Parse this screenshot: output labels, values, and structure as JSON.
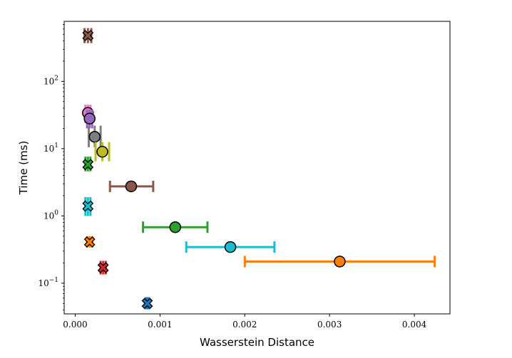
{
  "chart_data": {
    "type": "scatter",
    "xlabel": "Wasserstein Distance",
    "ylabel": "Time (ms)",
    "x_scale": "linear",
    "y_scale": "log",
    "xlim": [
      -0.00013,
      0.00442
    ],
    "ylim": [
      0.035,
      780
    ],
    "x_ticks": [
      0,
      0.001,
      0.002,
      0.003,
      0.004
    ],
    "x_tick_labels": [
      "0.000",
      "0.001",
      "0.002",
      "0.003",
      "0.004"
    ],
    "y_ticks": [
      0.1,
      1,
      10,
      100
    ],
    "y_tick_labels": [
      "10",
      "10",
      "10",
      "10"
    ],
    "y_tick_exponents": [
      "−1",
      "0",
      "1",
      "2"
    ],
    "grid": false,
    "series": [
      {
        "name": "blue-x",
        "marker": "x",
        "color": "#1f77b4",
        "x": 0.00085,
        "y": 0.05,
        "xerr": [
          0.00083,
          0.00087
        ],
        "yerr": [
          0.041,
          0.062
        ]
      },
      {
        "name": "red-x",
        "marker": "x",
        "color": "#d62728",
        "x": 0.00033,
        "y": 0.17,
        "xerr": [
          0.0003,
          0.00036
        ],
        "yerr": [
          0.135,
          0.215
        ]
      },
      {
        "name": "orange-x",
        "marker": "x",
        "color": "#ff7f0e",
        "x": 0.00017,
        "y": 0.41,
        "xerr": [
          0.00014,
          0.0002
        ],
        "yerr": [
          0.34,
          0.5
        ]
      },
      {
        "name": "cyan-x",
        "marker": "x",
        "color": "#17becf",
        "x": 0.00015,
        "y": 1.4,
        "xerr": [
          0.00012,
          0.00018
        ],
        "yerr": [
          1.0,
          1.9
        ]
      },
      {
        "name": "green-x",
        "marker": "x",
        "color": "#2ca02c",
        "x": 0.00015,
        "y": 5.8,
        "xerr": [
          0.00012,
          0.00018
        ],
        "yerr": [
          4.6,
          7.6
        ]
      },
      {
        "name": "brown-x",
        "marker": "x",
        "color": "#8c564b",
        "x": 0.00015,
        "y": 480,
        "xerr": [
          0.00011,
          0.00019
        ],
        "yerr": [
          370,
          620
        ]
      },
      {
        "name": "pink-circle",
        "marker": "o",
        "color": "#e377c2",
        "x": 0.00015,
        "y": 34,
        "xerr": [
          0.00012,
          0.00018
        ],
        "yerr": [
          24,
          45
        ]
      },
      {
        "name": "purple-circle",
        "marker": "o",
        "color": "#9467bd",
        "x": 0.00017,
        "y": 28,
        "xerr": [
          0.00014,
          0.0002
        ],
        "yerr": [
          20,
          38
        ]
      },
      {
        "name": "gray-circle",
        "marker": "o",
        "color": "#7f7f7f",
        "x": 0.00023,
        "y": 15,
        "xerr": [
          0.00016,
          0.0003
        ],
        "yerr": [
          10.5,
          22
        ]
      },
      {
        "name": "olive-circle",
        "marker": "o",
        "color": "#bcbd22",
        "x": 0.00032,
        "y": 9,
        "xerr": [
          0.00024,
          0.0004
        ],
        "yerr": [
          6.5,
          12.5
        ]
      },
      {
        "name": "brown-circle",
        "marker": "o",
        "color": "#8c564b",
        "x": 0.00066,
        "y": 2.75,
        "xerr": [
          0.00041,
          0.00092
        ],
        "yerr": [
          2.75,
          2.75
        ]
      },
      {
        "name": "green-circle",
        "marker": "o",
        "color": "#2ca02c",
        "x": 0.00118,
        "y": 0.68,
        "xerr": [
          0.0008,
          0.00156
        ],
        "yerr": [
          0.68,
          0.68
        ]
      },
      {
        "name": "cyan-circle",
        "marker": "o",
        "color": "#17becf",
        "x": 0.00183,
        "y": 0.345,
        "xerr": [
          0.00131,
          0.00235
        ],
        "yerr": [
          0.345,
          0.345
        ]
      },
      {
        "name": "orange-circle",
        "marker": "o",
        "color": "#ff7f0e",
        "x": 0.00312,
        "y": 0.21,
        "xerr": [
          0.002,
          0.00424
        ],
        "yerr": [
          0.21,
          0.21
        ]
      }
    ]
  }
}
